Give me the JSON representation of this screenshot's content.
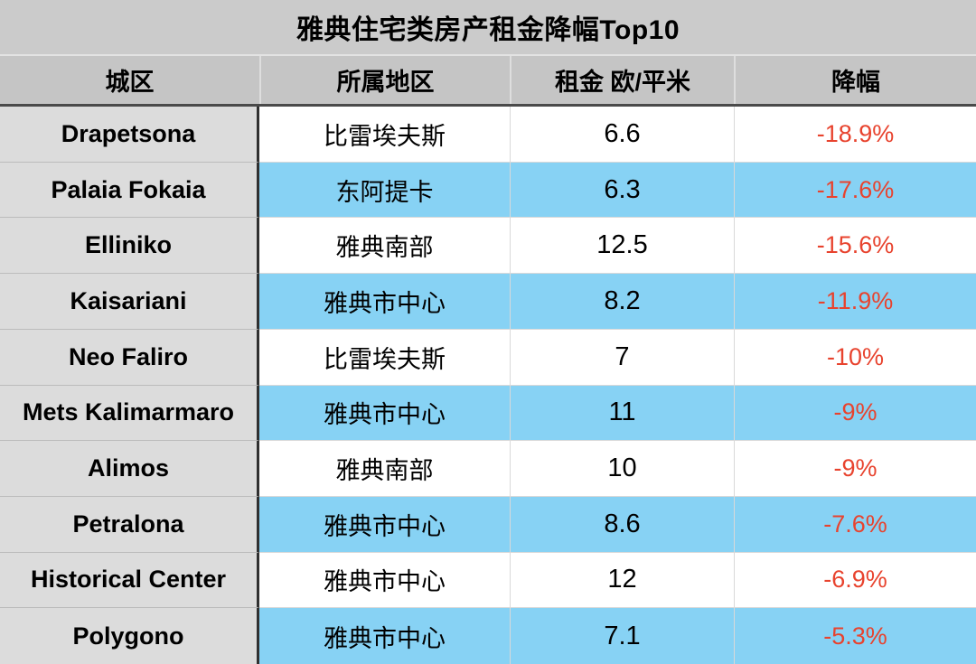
{
  "title_bar": "雅典住宅类房产租金降幅Top10",
  "chart_data": {
    "type": "table",
    "title": "雅典住宅类房产租金降幅Top10",
    "columns": [
      "城区",
      "所属地区",
      "租金 欧/平米",
      "降幅"
    ],
    "column_keys": [
      "district",
      "region",
      "rent_eur_per_sqm",
      "drop_pct"
    ],
    "rows": [
      [
        "Drapetsona",
        "比雷埃夫斯",
        "6.6",
        "-18.9%"
      ],
      [
        "Palaia Fokaia",
        "东阿提卡",
        "6.3",
        "-17.6%"
      ],
      [
        "Elliniko",
        "雅典南部",
        "12.5",
        "-15.6%"
      ],
      [
        "Kaisariani",
        "雅典市中心",
        "8.2",
        "-11.9%"
      ],
      [
        "Neo Faliro",
        "比雷埃夫斯",
        "7",
        "-10%"
      ],
      [
        "Mets Kalimarmaro",
        "雅典市中心",
        "11",
        "-9%"
      ],
      [
        "Alimos",
        "雅典南部",
        "10",
        "-9%"
      ],
      [
        "Petralona",
        "雅典市中心",
        "8.6",
        "-7.6%"
      ],
      [
        "Historical Center",
        "雅典市中心",
        "12",
        "-6.9%"
      ],
      [
        "Polygono",
        "雅典市中心",
        "7.1",
        "-5.3%"
      ]
    ],
    "layout": {
      "zebra_pattern": "odd rows white, even rows sky blue",
      "first_column_style": "gray background, bold text, dark separator on right",
      "drop_column_text_color": "#e8432e",
      "grid": "thin light row separators, dark line under header"
    }
  },
  "colors": {
    "title_bg": "#cbcbcb",
    "header_bg": "#c5c5c5",
    "first_col_bg": "#dcdcdc",
    "zebra_blue": "#87d2f4",
    "zebra_white": "#ffffff",
    "drop_text": "#e8432e",
    "text": "#000000",
    "divider_dark": "#303030",
    "header_underline": "#4a4a4a"
  }
}
